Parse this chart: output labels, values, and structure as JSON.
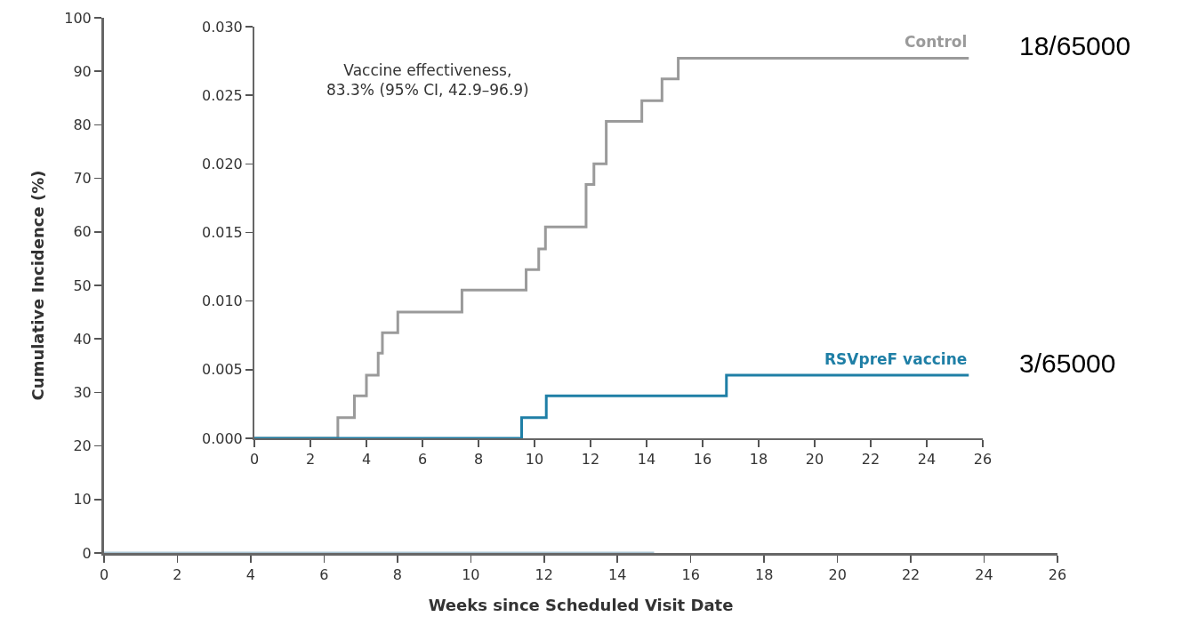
{
  "chart_data": [
    {
      "type": "line",
      "xlabel": "Weeks since Scheduled Visit Date",
      "ylabel": "Cumulative Incidence (%)",
      "xlim": [
        0,
        26
      ],
      "xticks": [
        0,
        2,
        4,
        6,
        8,
        10,
        12,
        14,
        16,
        18,
        20,
        22,
        24,
        26
      ],
      "ylim": [
        0,
        100
      ],
      "yticks": [
        0,
        10,
        20,
        30,
        40,
        50,
        60,
        70,
        80,
        90,
        100
      ],
      "grid": false,
      "legend": false,
      "series": [
        {
          "color": "#a9c3d2",
          "x": [
            0,
            15
          ],
          "values": [
            0,
            0
          ]
        }
      ]
    },
    {
      "type": "step",
      "xlim": [
        0,
        26
      ],
      "xticks": [
        0,
        2,
        4,
        6,
        8,
        10,
        12,
        14,
        16,
        18,
        20,
        22,
        24,
        26
      ],
      "ylim": [
        0,
        0.03
      ],
      "yticks": [
        {
          "value": 0,
          "label": "0.000"
        },
        {
          "value": 0.005,
          "label": "0.005"
        },
        {
          "value": 0.01,
          "label": "0.010"
        },
        {
          "value": 0.015,
          "label": "0.015"
        },
        {
          "value": 0.02,
          "label": "0.020"
        },
        {
          "value": 0.025,
          "label": "0.025"
        },
        {
          "value": 0.03,
          "label": "0.030"
        }
      ],
      "grid": false,
      "legend": false,
      "annotations": [
        "Vaccine effectiveness,\n83.3% (95% CI, 42.9–96.9)",
        {
          "text": "18/65000",
          "x": 25.5,
          "y": 0.0277
        },
        {
          "text": "3/65000",
          "x": 25.5,
          "y": 0.0046
        }
      ],
      "series": [
        {
          "name": "Control",
          "color": "#9a9a9a",
          "x": [
            0,
            2.98,
            3.57,
            4.0,
            4.42,
            4.57,
            5.12,
            7.41,
            9.7,
            10.15,
            10.39,
            11.84,
            12.12,
            12.56,
            13.83,
            14.55,
            15.13,
            25.5
          ],
          "values": [
            0,
            0.0015,
            0.0031,
            0.0046,
            0.0062,
            0.0077,
            0.0092,
            0.0108,
            0.0123,
            0.0138,
            0.0154,
            0.0185,
            0.02,
            0.0231,
            0.0246,
            0.0262,
            0.0277,
            0.0277
          ]
        },
        {
          "name": "RSVpreF vaccine",
          "color": "#1f7fa6",
          "x": [
            0,
            9.54,
            10.42,
            16.85,
            25.5
          ],
          "values": [
            0,
            0.0015,
            0.0031,
            0.0046,
            0.0046
          ]
        }
      ]
    }
  ]
}
